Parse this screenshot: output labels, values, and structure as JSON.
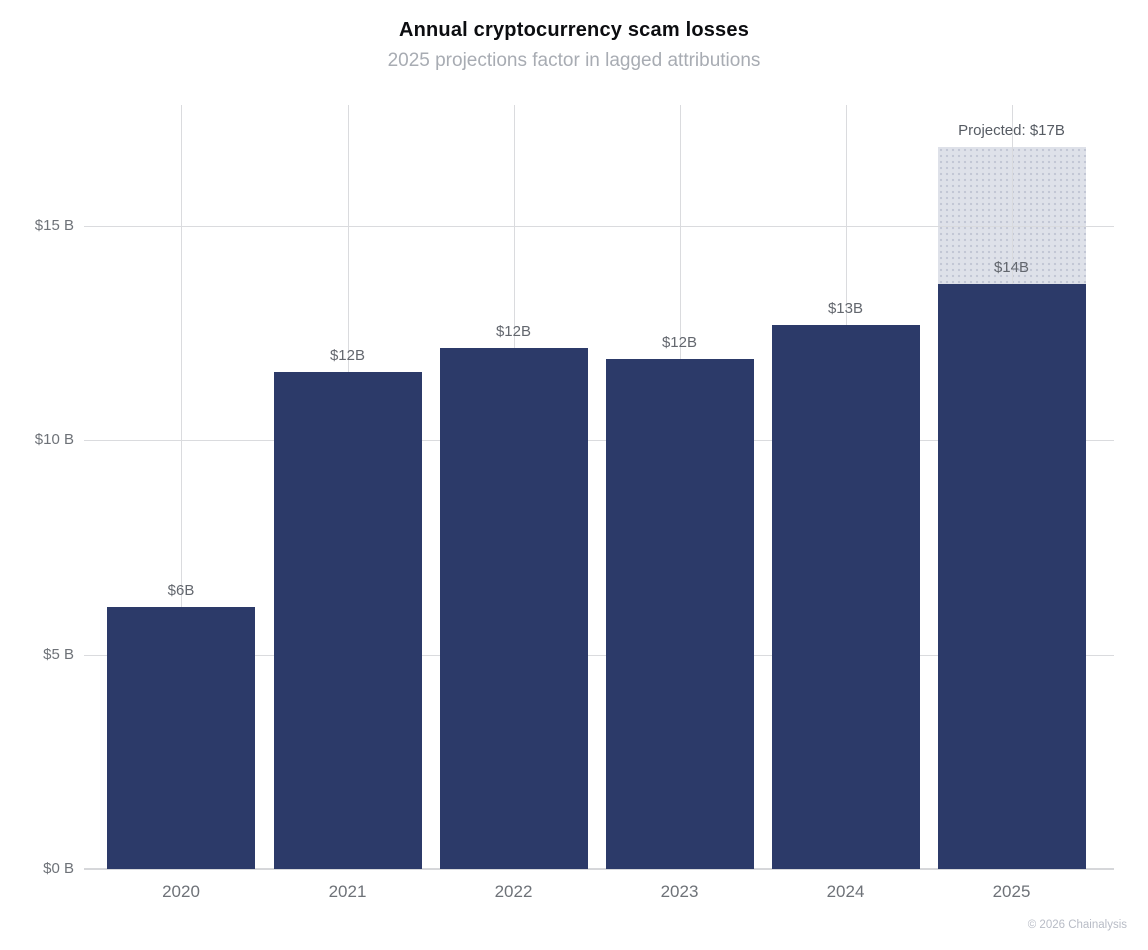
{
  "title": "Annual cryptocurrency scam losses",
  "subtitle": "2025 projections factor in lagged attributions",
  "credit": "© 2026 Chainalysis",
  "chart_data": {
    "type": "bar",
    "title": "Annual cryptocurrency scam losses",
    "subtitle": "2025 projections factor in lagged attributions",
    "categories": [
      "2020",
      "2021",
      "2022",
      "2023",
      "2024",
      "2025"
    ],
    "values": [
      6,
      12,
      12,
      12,
      13,
      14
    ],
    "bar_heights_estimated": [
      6.1,
      11.6,
      12.15,
      11.9,
      12.7,
      13.65
    ],
    "bar_labels": [
      "$6B",
      "$12B",
      "$12B",
      "$12B",
      "$13B",
      "$14B"
    ],
    "projected": {
      "category": "2025",
      "total": 17,
      "total_estimated": 16.85,
      "label": "Projected: $17B"
    },
    "y_ticks": [
      0,
      5,
      10,
      15
    ],
    "y_tick_labels": [
      "$0 B",
      "$5 B",
      "$10 B",
      "$15 B"
    ],
    "ylim": [
      0,
      17.8
    ],
    "xlabel": "",
    "ylabel": "",
    "grid": true,
    "legend": false,
    "bar_color": "#2c3a69",
    "projected_fill_color": "#dbdee7",
    "gridline_color": "#dadbde",
    "label_color": "#63676e"
  }
}
